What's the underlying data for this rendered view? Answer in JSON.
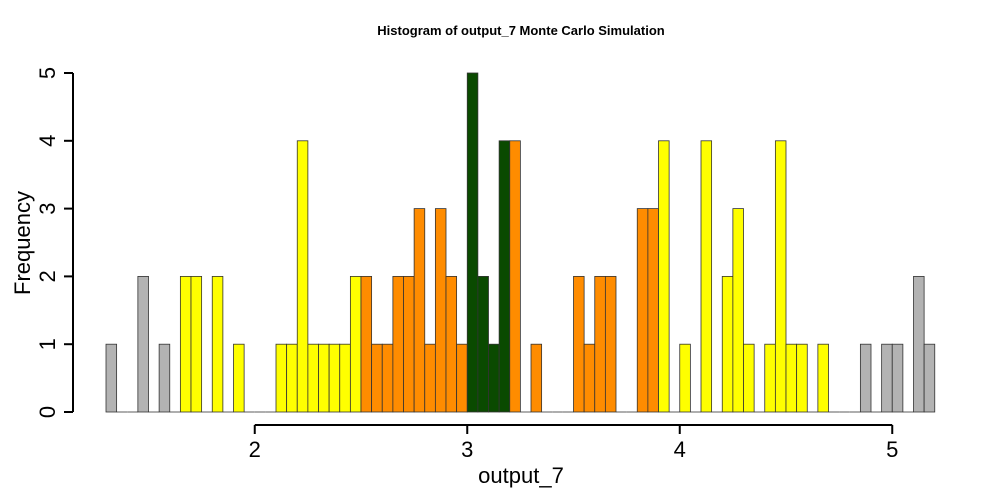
{
  "chart_data": {
    "type": "bar",
    "title": "Histogram of  output_7  Monte Carlo Simulation",
    "xlabel": "output_7",
    "ylabel": "Frequency",
    "xlim": [
      1.3,
      5.2
    ],
    "ylim": [
      0,
      5
    ],
    "bin_width": 0.05,
    "bin_start": 1.3,
    "x_ticks": [
      2,
      3,
      4,
      5
    ],
    "y_ticks": [
      0,
      1,
      2,
      3,
      4,
      5
    ],
    "grid": false,
    "legend": "none",
    "colors": {
      "outer": "#b3b3b3",
      "yellow": "#ffff00",
      "orange": "#ff8c00",
      "center": "#0a4a00"
    },
    "bins": [
      {
        "x0": 1.3,
        "count": 1,
        "color": "outer"
      },
      {
        "x0": 1.35,
        "count": 0,
        "color": "outer"
      },
      {
        "x0": 1.4,
        "count": 0,
        "color": "outer"
      },
      {
        "x0": 1.45,
        "count": 2,
        "color": "outer"
      },
      {
        "x0": 1.5,
        "count": 0,
        "color": "outer"
      },
      {
        "x0": 1.55,
        "count": 1,
        "color": "outer"
      },
      {
        "x0": 1.6,
        "count": 0,
        "color": "yellow"
      },
      {
        "x0": 1.65,
        "count": 2,
        "color": "yellow"
      },
      {
        "x0": 1.7,
        "count": 2,
        "color": "yellow"
      },
      {
        "x0": 1.75,
        "count": 0,
        "color": "yellow"
      },
      {
        "x0": 1.8,
        "count": 2,
        "color": "yellow"
      },
      {
        "x0": 1.85,
        "count": 0,
        "color": "yellow"
      },
      {
        "x0": 1.9,
        "count": 1,
        "color": "yellow"
      },
      {
        "x0": 1.95,
        "count": 0,
        "color": "yellow"
      },
      {
        "x0": 2.0,
        "count": 0,
        "color": "yellow"
      },
      {
        "x0": 2.05,
        "count": 0,
        "color": "yellow"
      },
      {
        "x0": 2.1,
        "count": 1,
        "color": "yellow"
      },
      {
        "x0": 2.15,
        "count": 1,
        "color": "yellow"
      },
      {
        "x0": 2.2,
        "count": 4,
        "color": "yellow"
      },
      {
        "x0": 2.25,
        "count": 1,
        "color": "yellow"
      },
      {
        "x0": 2.3,
        "count": 1,
        "color": "yellow"
      },
      {
        "x0": 2.35,
        "count": 1,
        "color": "yellow"
      },
      {
        "x0": 2.4,
        "count": 1,
        "color": "yellow"
      },
      {
        "x0": 2.45,
        "count": 2,
        "color": "yellow"
      },
      {
        "x0": 2.5,
        "count": 2,
        "color": "orange"
      },
      {
        "x0": 2.55,
        "count": 1,
        "color": "orange"
      },
      {
        "x0": 2.6,
        "count": 1,
        "color": "orange"
      },
      {
        "x0": 2.65,
        "count": 2,
        "color": "orange"
      },
      {
        "x0": 2.7,
        "count": 2,
        "color": "orange"
      },
      {
        "x0": 2.75,
        "count": 3,
        "color": "orange"
      },
      {
        "x0": 2.8,
        "count": 1,
        "color": "orange"
      },
      {
        "x0": 2.85,
        "count": 3,
        "color": "orange"
      },
      {
        "x0": 2.9,
        "count": 2,
        "color": "orange"
      },
      {
        "x0": 2.95,
        "count": 1,
        "color": "orange"
      },
      {
        "x0": 3.0,
        "count": 5,
        "color": "center"
      },
      {
        "x0": 3.05,
        "count": 2,
        "color": "center"
      },
      {
        "x0": 3.1,
        "count": 1,
        "color": "center"
      },
      {
        "x0": 3.15,
        "count": 4,
        "color": "center"
      },
      {
        "x0": 3.2,
        "count": 4,
        "color": "orange"
      },
      {
        "x0": 3.25,
        "count": 0,
        "color": "orange"
      },
      {
        "x0": 3.3,
        "count": 1,
        "color": "orange"
      },
      {
        "x0": 3.35,
        "count": 0,
        "color": "orange"
      },
      {
        "x0": 3.4,
        "count": 0,
        "color": "orange"
      },
      {
        "x0": 3.45,
        "count": 0,
        "color": "orange"
      },
      {
        "x0": 3.5,
        "count": 2,
        "color": "orange"
      },
      {
        "x0": 3.55,
        "count": 1,
        "color": "orange"
      },
      {
        "x0": 3.6,
        "count": 2,
        "color": "orange"
      },
      {
        "x0": 3.65,
        "count": 2,
        "color": "orange"
      },
      {
        "x0": 3.7,
        "count": 0,
        "color": "orange"
      },
      {
        "x0": 3.75,
        "count": 0,
        "color": "orange"
      },
      {
        "x0": 3.8,
        "count": 3,
        "color": "orange"
      },
      {
        "x0": 3.85,
        "count": 3,
        "color": "orange"
      },
      {
        "x0": 3.9,
        "count": 4,
        "color": "yellow"
      },
      {
        "x0": 3.95,
        "count": 0,
        "color": "yellow"
      },
      {
        "x0": 4.0,
        "count": 1,
        "color": "yellow"
      },
      {
        "x0": 4.05,
        "count": 0,
        "color": "yellow"
      },
      {
        "x0": 4.1,
        "count": 4,
        "color": "yellow"
      },
      {
        "x0": 4.15,
        "count": 0,
        "color": "yellow"
      },
      {
        "x0": 4.2,
        "count": 2,
        "color": "yellow"
      },
      {
        "x0": 4.25,
        "count": 3,
        "color": "yellow"
      },
      {
        "x0": 4.3,
        "count": 1,
        "color": "yellow"
      },
      {
        "x0": 4.35,
        "count": 0,
        "color": "yellow"
      },
      {
        "x0": 4.4,
        "count": 1,
        "color": "yellow"
      },
      {
        "x0": 4.45,
        "count": 4,
        "color": "yellow"
      },
      {
        "x0": 4.5,
        "count": 1,
        "color": "yellow"
      },
      {
        "x0": 4.55,
        "count": 1,
        "color": "yellow"
      },
      {
        "x0": 4.6,
        "count": 0,
        "color": "yellow"
      },
      {
        "x0": 4.65,
        "count": 1,
        "color": "yellow"
      },
      {
        "x0": 4.7,
        "count": 0,
        "color": "yellow"
      },
      {
        "x0": 4.75,
        "count": 0,
        "color": "yellow"
      },
      {
        "x0": 4.8,
        "count": 0,
        "color": "outer"
      },
      {
        "x0": 4.85,
        "count": 1,
        "color": "outer"
      },
      {
        "x0": 4.9,
        "count": 0,
        "color": "outer"
      },
      {
        "x0": 4.95,
        "count": 1,
        "color": "outer"
      },
      {
        "x0": 5.0,
        "count": 1,
        "color": "outer"
      },
      {
        "x0": 5.05,
        "count": 0,
        "color": "outer"
      },
      {
        "x0": 5.1,
        "count": 2,
        "color": "outer"
      },
      {
        "x0": 5.15,
        "count": 1,
        "color": "outer"
      }
    ]
  }
}
